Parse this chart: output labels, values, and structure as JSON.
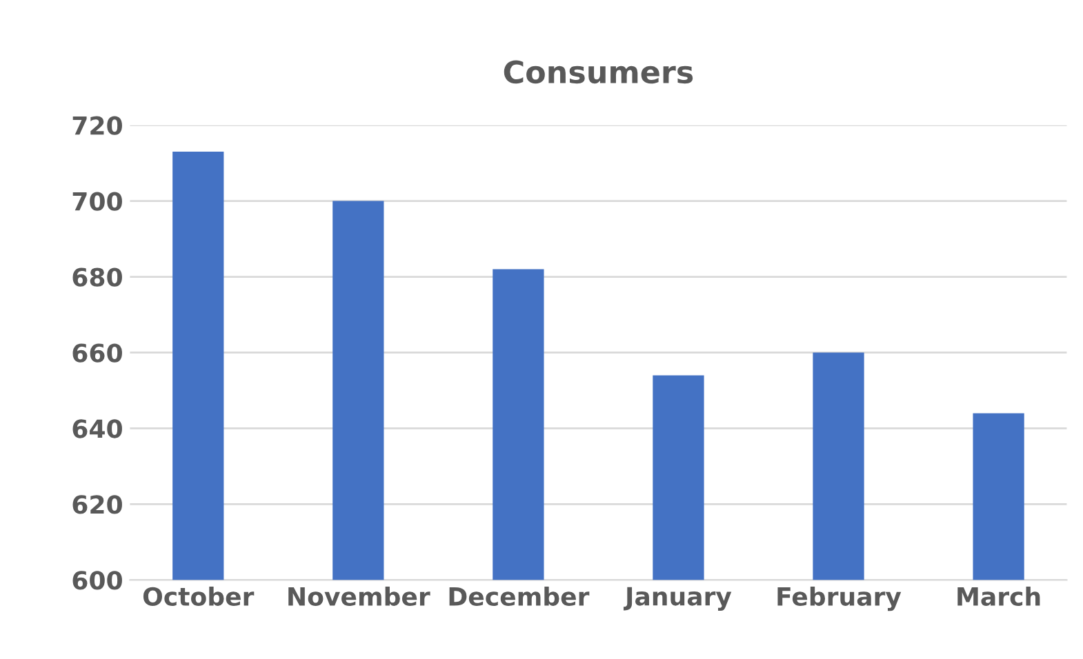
{
  "chart_data": {
    "type": "bar",
    "title": "Consumers",
    "categories": [
      "October",
      "November",
      "December",
      "January",
      "February",
      "March"
    ],
    "values": [
      713,
      700,
      682,
      654,
      660,
      644
    ],
    "color": "#4472c4",
    "ylim": [
      600,
      720
    ],
    "yticks": [
      600,
      620,
      640,
      660,
      680,
      700,
      720
    ],
    "grid": "y",
    "legend": false
  }
}
